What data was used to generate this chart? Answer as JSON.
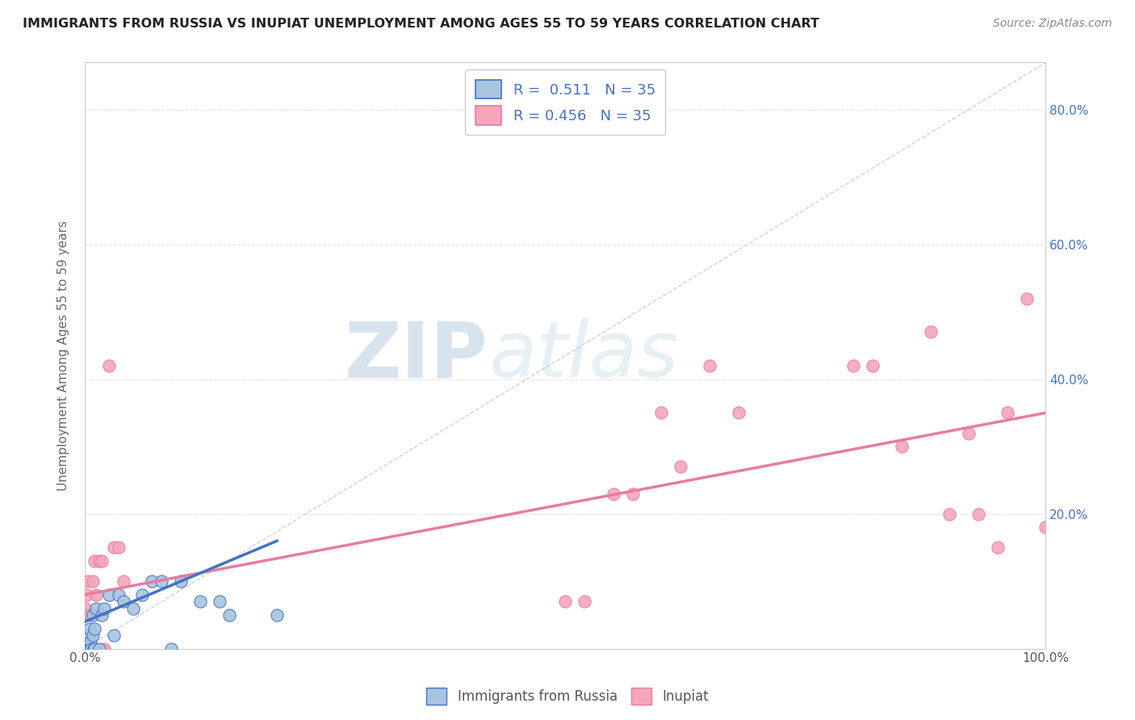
{
  "title": "IMMIGRANTS FROM RUSSIA VS INUPIAT UNEMPLOYMENT AMONG AGES 55 TO 59 YEARS CORRELATION CHART",
  "source": "Source: ZipAtlas.com",
  "ylabel": "Unemployment Among Ages 55 to 59 years",
  "xlim": [
    0,
    1.0
  ],
  "ylim": [
    0,
    0.87
  ],
  "xticks": [
    0.0,
    1.0
  ],
  "xticklabels": [
    "0.0%",
    "100.0%"
  ],
  "yticks": [
    0.0,
    0.2,
    0.4,
    0.6,
    0.8
  ],
  "yticklabels_right": [
    "",
    "20.0%",
    "40.0%",
    "60.0%",
    "80.0%"
  ],
  "legend_line1": "R =  0.511   N = 35",
  "legend_line2": "R = 0.456   N = 35",
  "color_blue": "#a8c4e0",
  "color_pink": "#f4a7b9",
  "trendline_blue": "#4472c4",
  "trendline_pink": "#e87ba0",
  "diag_color": "#b8c8d8",
  "watermark_zip": "ZIP",
  "watermark_atlas": "atlas",
  "blue_scatter": [
    [
      0.0,
      0.0
    ],
    [
      0.001,
      0.0
    ],
    [
      0.001,
      0.005
    ],
    [
      0.002,
      0.01
    ],
    [
      0.002,
      0.0
    ],
    [
      0.003,
      0.0
    ],
    [
      0.004,
      0.0
    ],
    [
      0.004,
      0.02
    ],
    [
      0.005,
      0.0
    ],
    [
      0.005,
      0.03
    ],
    [
      0.006,
      0.01
    ],
    [
      0.007,
      0.0
    ],
    [
      0.008,
      0.02
    ],
    [
      0.008,
      0.05
    ],
    [
      0.009,
      0.0
    ],
    [
      0.01,
      0.0
    ],
    [
      0.01,
      0.03
    ],
    [
      0.012,
      0.06
    ],
    [
      0.015,
      0.0
    ],
    [
      0.018,
      0.05
    ],
    [
      0.02,
      0.06
    ],
    [
      0.025,
      0.08
    ],
    [
      0.03,
      0.02
    ],
    [
      0.035,
      0.08
    ],
    [
      0.04,
      0.07
    ],
    [
      0.05,
      0.06
    ],
    [
      0.06,
      0.08
    ],
    [
      0.07,
      0.1
    ],
    [
      0.08,
      0.1
    ],
    [
      0.09,
      0.0
    ],
    [
      0.1,
      0.1
    ],
    [
      0.12,
      0.07
    ],
    [
      0.14,
      0.07
    ],
    [
      0.15,
      0.05
    ],
    [
      0.2,
      0.05
    ]
  ],
  "pink_scatter": [
    [
      0.0,
      0.05
    ],
    [
      0.001,
      0.06
    ],
    [
      0.002,
      0.08
    ],
    [
      0.003,
      0.1
    ],
    [
      0.005,
      0.0
    ],
    [
      0.006,
      0.05
    ],
    [
      0.008,
      0.1
    ],
    [
      0.01,
      0.13
    ],
    [
      0.012,
      0.08
    ],
    [
      0.015,
      0.13
    ],
    [
      0.018,
      0.13
    ],
    [
      0.02,
      0.0
    ],
    [
      0.025,
      0.42
    ],
    [
      0.03,
      0.15
    ],
    [
      0.035,
      0.15
    ],
    [
      0.04,
      0.1
    ],
    [
      0.5,
      0.07
    ],
    [
      0.52,
      0.07
    ],
    [
      0.55,
      0.23
    ],
    [
      0.57,
      0.23
    ],
    [
      0.6,
      0.35
    ],
    [
      0.62,
      0.27
    ],
    [
      0.65,
      0.42
    ],
    [
      0.68,
      0.35
    ],
    [
      0.8,
      0.42
    ],
    [
      0.82,
      0.42
    ],
    [
      0.85,
      0.3
    ],
    [
      0.88,
      0.47
    ],
    [
      0.9,
      0.2
    ],
    [
      0.92,
      0.32
    ],
    [
      0.93,
      0.2
    ],
    [
      0.95,
      0.15
    ],
    [
      0.96,
      0.35
    ],
    [
      0.98,
      0.52
    ],
    [
      1.0,
      0.18
    ]
  ],
  "pink_trendline": [
    [
      0.0,
      0.08
    ],
    [
      1.0,
      0.35
    ]
  ],
  "blue_trendline": [
    [
      0.0,
      0.04
    ],
    [
      0.2,
      0.16
    ]
  ],
  "background_color": "#ffffff",
  "plot_bg": "#ffffff",
  "title_color": "#222222",
  "axis_color": "#cccccc",
  "grid_color": "#e0e0e0",
  "watermark_color": "#c8d8e8",
  "legend_text_color": "#4472c4",
  "figsize": [
    14.06,
    8.92
  ],
  "dpi": 100
}
